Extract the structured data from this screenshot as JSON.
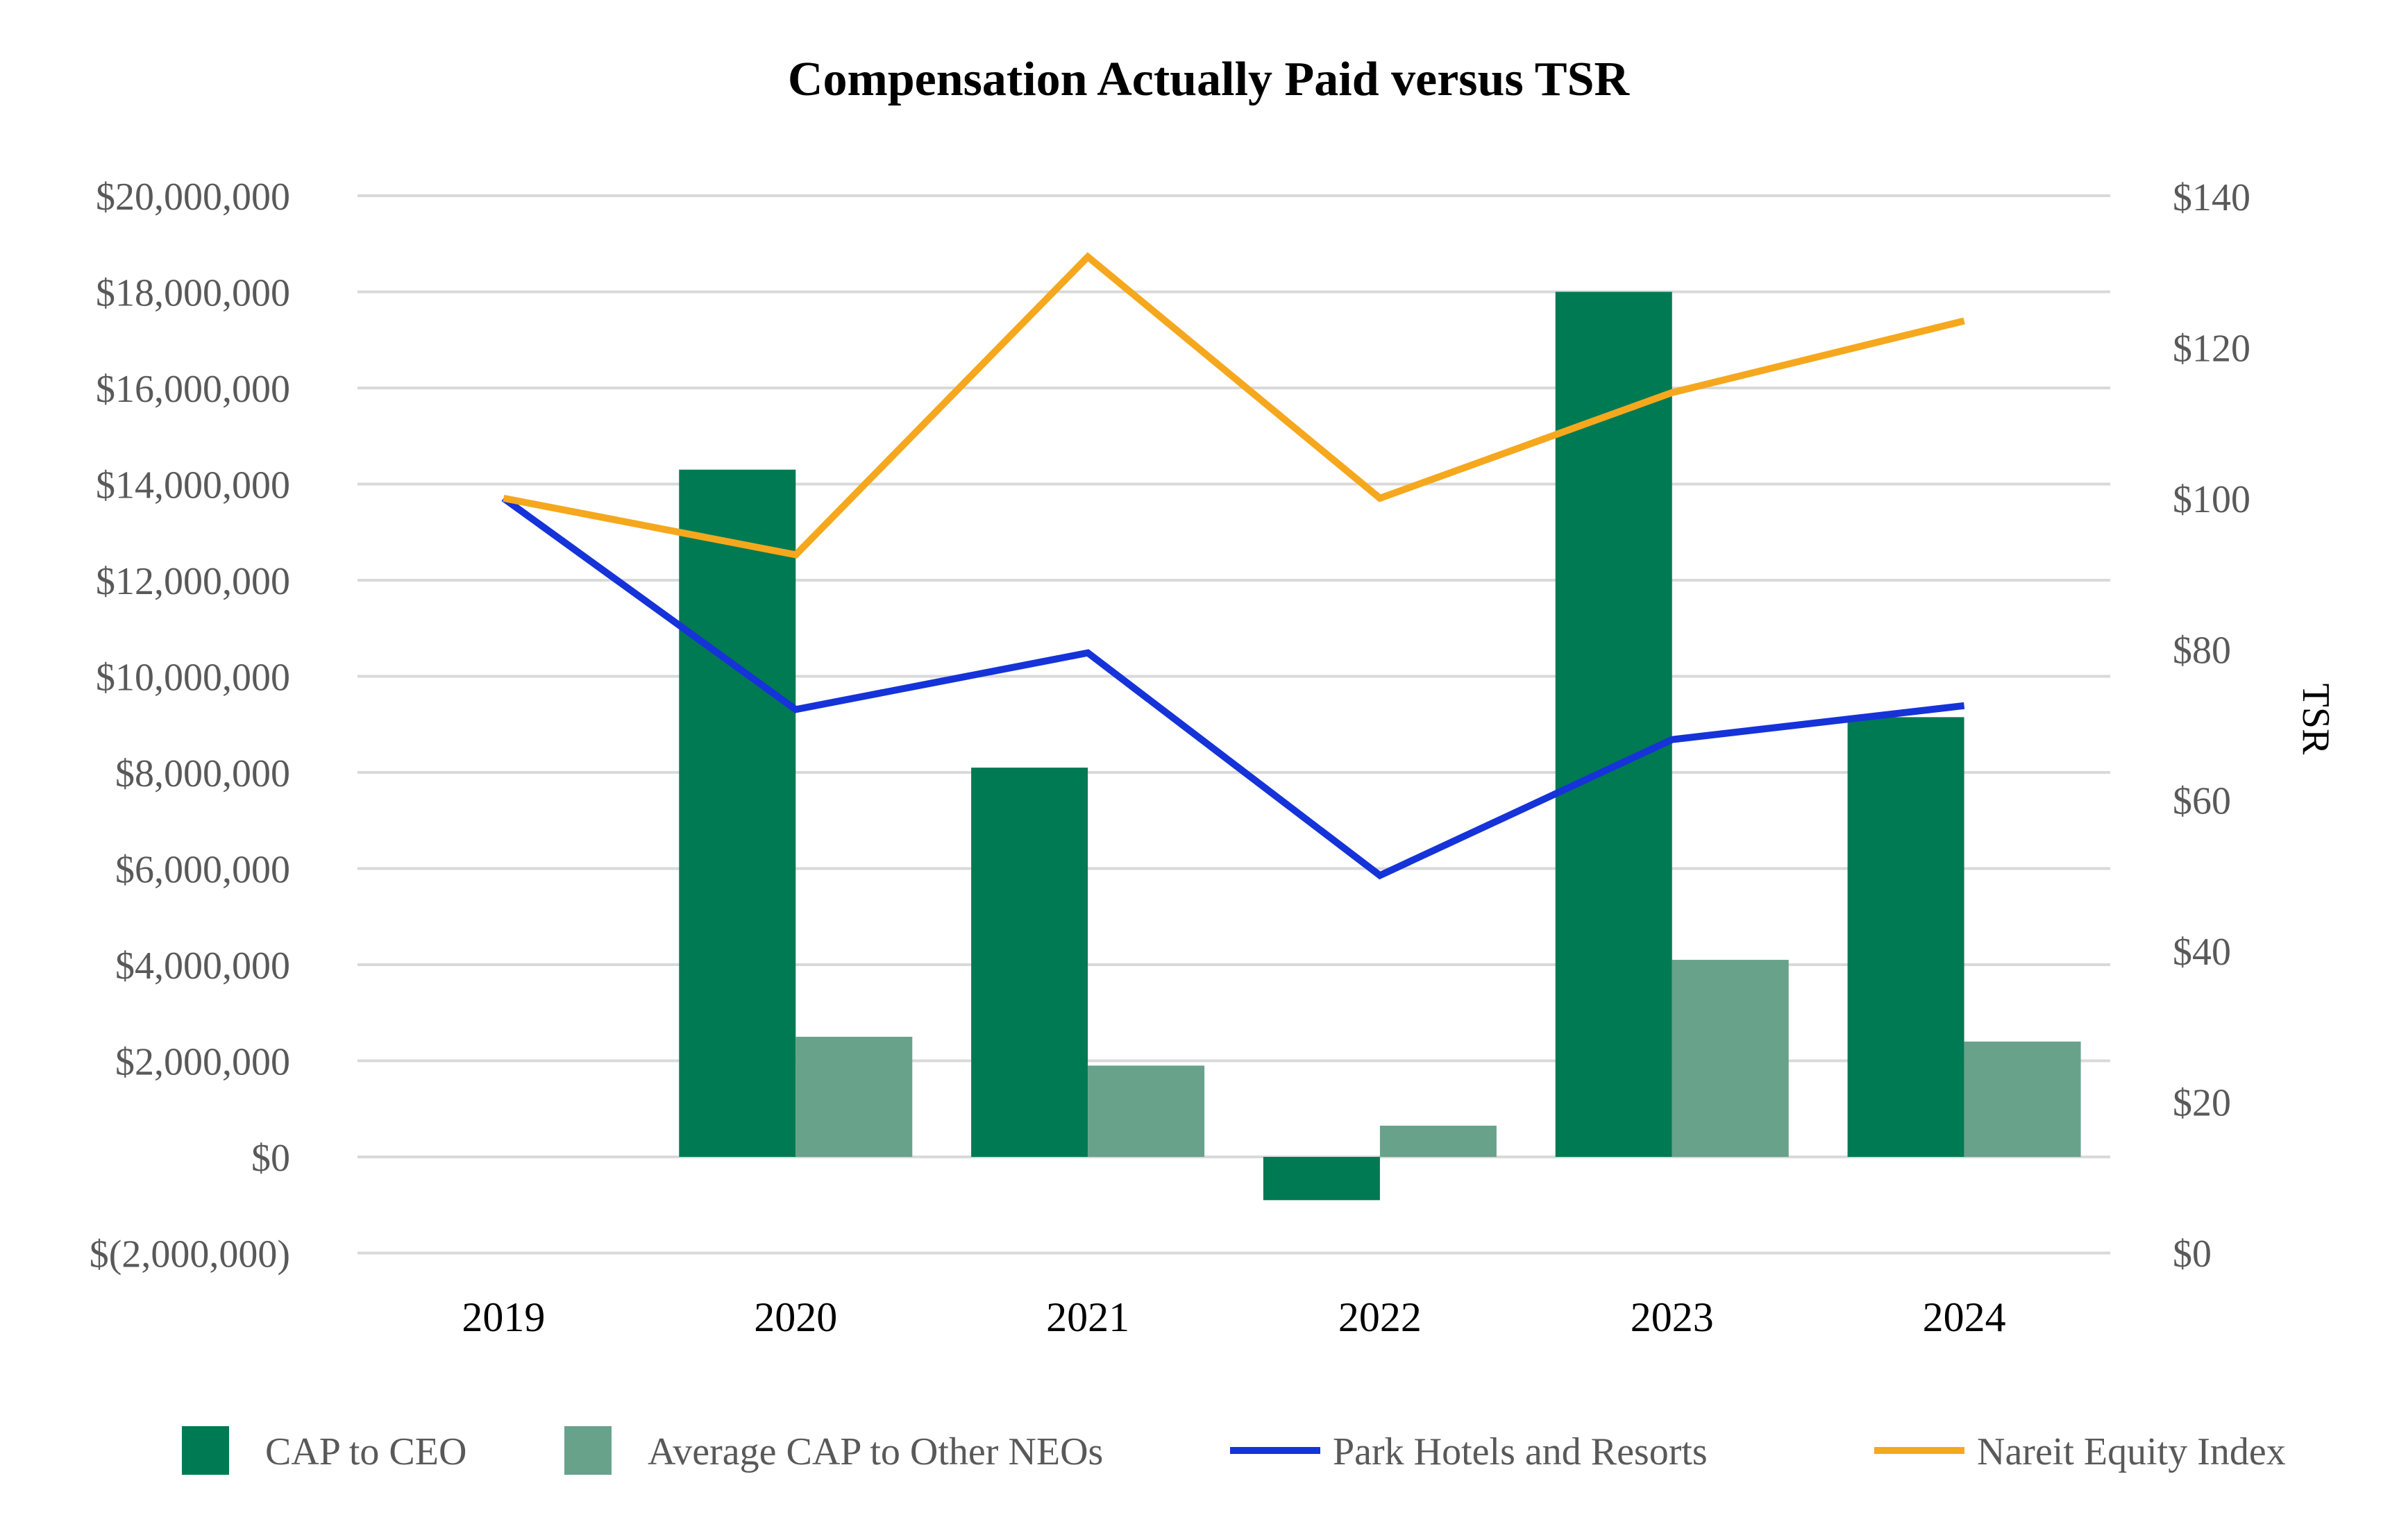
{
  "chart_data": {
    "type": "bar",
    "title": "Compensation Actually Paid versus TSR",
    "categories": [
      "2019",
      "2020",
      "2021",
      "2022",
      "2023",
      "2024"
    ],
    "series": [
      {
        "name": "CAP to CEO",
        "kind": "bar",
        "axis": "left",
        "color": "#007A53",
        "values": [
          null,
          14300000,
          8100000,
          -900000,
          18000000,
          9150000
        ]
      },
      {
        "name": "Average CAP to Other NEOs",
        "kind": "bar",
        "axis": "left",
        "color": "#68A28B",
        "values": [
          null,
          2500000,
          1900000,
          650000,
          4100000,
          2400000
        ]
      },
      {
        "name": "Park Hotels and Resorts",
        "kind": "line",
        "axis": "right",
        "color": "#1533D8",
        "values": [
          100,
          72,
          79.5,
          50,
          68,
          72.5
        ]
      },
      {
        "name": "Nareit Equity Index",
        "kind": "line",
        "axis": "right",
        "color": "#F5A81D",
        "values": [
          100,
          92.5,
          132,
          100,
          114,
          123.5
        ]
      }
    ],
    "left_axis": {
      "label": "",
      "ylim": [
        -2000000,
        20000000
      ],
      "ticks": [
        -2000000,
        0,
        2000000,
        4000000,
        6000000,
        8000000,
        10000000,
        12000000,
        14000000,
        16000000,
        18000000,
        20000000
      ],
      "tick_labels": [
        "$(2,000,000)",
        "$0",
        "$2,000,000",
        "$4,000,000",
        "$6,000,000",
        "$8,000,000",
        "$10,000,000",
        "$12,000,000",
        "$14,000,000",
        "$16,000,000",
        "$18,000,000",
        "$20,000,000"
      ]
    },
    "right_axis": {
      "label": "TSR",
      "ylim": [
        0,
        140
      ],
      "ticks": [
        0,
        20,
        40,
        60,
        80,
        100,
        120,
        140
      ],
      "tick_labels": [
        "$0",
        "$20",
        "$40",
        "$60",
        "$80",
        "$100",
        "$120",
        "$140"
      ]
    },
    "grid": true,
    "legend": {
      "position": "bottom"
    }
  }
}
